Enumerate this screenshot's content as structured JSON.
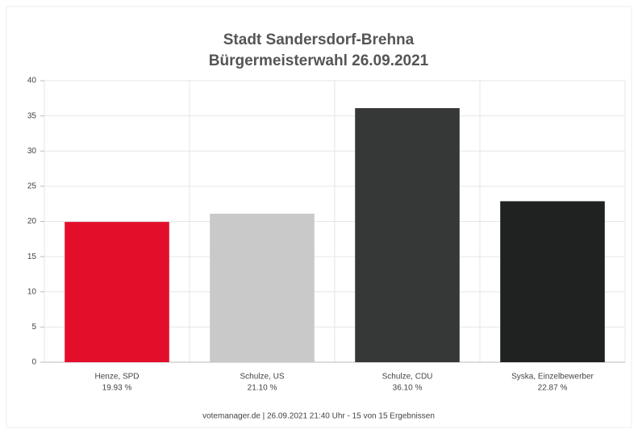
{
  "chart_data": {
    "type": "bar",
    "title": "Stadt Sandersdorf-Brehna",
    "subtitle": "Bürgermeisterwahl 26.09.2021",
    "categories": [
      "Henze, SPD",
      "Schulze, US",
      "Schulze, CDU",
      "Syska, Einzelbewerber"
    ],
    "values": [
      19.93,
      21.1,
      36.1,
      22.87
    ],
    "value_labels": [
      "19.93 %",
      "21.10 %",
      "36.10 %",
      "22.87 %"
    ],
    "colors": [
      "#e30f2a",
      "#c9c9c9",
      "#363838",
      "#1f2221"
    ],
    "ylim": [
      0,
      40
    ],
    "yticks": [
      0,
      5,
      10,
      15,
      20,
      25,
      30,
      35,
      40
    ],
    "grid": true,
    "footer": "votemanager.de | 26.09.2021 21:40 Uhr - 15 von 15 Ergebnissen"
  }
}
